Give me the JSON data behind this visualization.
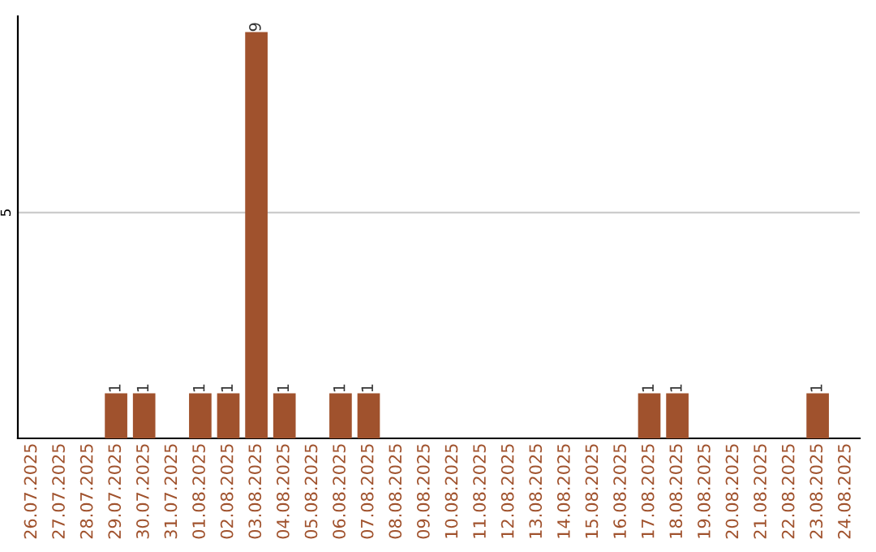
{
  "chart_data": {
    "type": "bar",
    "categories": [
      "26.07.2025",
      "27.07.2025",
      "28.07.2025",
      "29.07.2025",
      "30.07.2025",
      "31.07.2025",
      "01.08.2025",
      "02.08.2025",
      "03.08.2025",
      "04.08.2025",
      "05.08.2025",
      "06.08.2025",
      "07.08.2025",
      "08.08.2025",
      "09.08.2025",
      "10.08.2025",
      "11.08.2025",
      "12.08.2025",
      "13.08.2025",
      "14.08.2025",
      "15.08.2025",
      "16.08.2025",
      "17.08.2025",
      "18.08.2025",
      "19.08.2025",
      "20.08.2025",
      "21.08.2025",
      "22.08.2025",
      "23.08.2025",
      "24.08.2025"
    ],
    "values": [
      0,
      0,
      0,
      1,
      1,
      0,
      1,
      1,
      9,
      1,
      0,
      1,
      1,
      0,
      0,
      0,
      0,
      0,
      0,
      0,
      0,
      0,
      1,
      1,
      0,
      0,
      0,
      0,
      1,
      0
    ],
    "value_labels": [
      null,
      null,
      null,
      "1",
      "1",
      null,
      "1",
      "1",
      "9",
      "1",
      null,
      "1",
      "1",
      null,
      null,
      null,
      null,
      null,
      null,
      null,
      null,
      null,
      "1",
      "1",
      null,
      null,
      null,
      null,
      "1",
      null
    ],
    "color": "#a0522d",
    "ylim": [
      0,
      9.35
    ],
    "yticks": [
      5
    ],
    "grid": "y"
  }
}
